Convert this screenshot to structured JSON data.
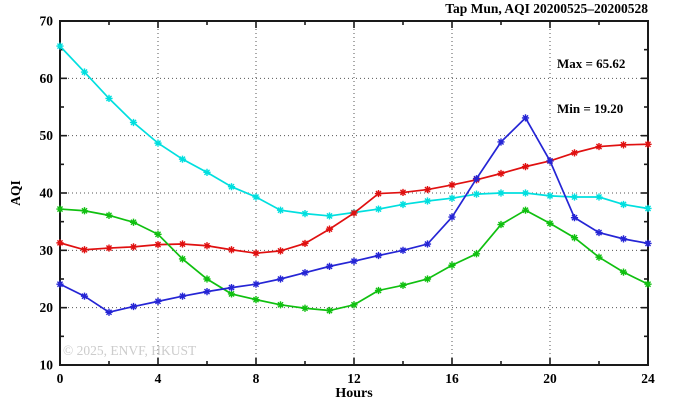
{
  "title": "Tap Mun, AQI 20200525–20200528",
  "watermark": "© 2025, ENVF, HKUST",
  "annotations": {
    "max_label": "Max = 65.62",
    "min_label": "Min = 19.20"
  },
  "chart_data": {
    "type": "line",
    "title": "Tap Mun, AQI 20200525–20200528",
    "xlabel": "Hours",
    "ylabel": "AQI",
    "xlim": [
      0,
      24
    ],
    "ylim": [
      10,
      70
    ],
    "xticks": [
      0,
      4,
      8,
      12,
      16,
      20,
      24
    ],
    "yticks": [
      10,
      20,
      30,
      40,
      50,
      60,
      70
    ],
    "minor_x_step": 2,
    "minor_y_step": 5,
    "grid": true,
    "legend": "none",
    "max_value": 65.62,
    "min_value": 19.2,
    "marker": "asterisk",
    "x": [
      0,
      1,
      2,
      3,
      4,
      5,
      6,
      7,
      8,
      9,
      10,
      11,
      12,
      13,
      14,
      15,
      16,
      17,
      18,
      19,
      20,
      21,
      22,
      23,
      24
    ],
    "series": [
      {
        "name": "cyan-line",
        "color": "#00dfdf",
        "values": [
          65.62,
          61.1,
          56.5,
          52.3,
          48.7,
          45.9,
          43.6,
          41.1,
          39.3,
          37.0,
          36.4,
          36.0,
          36.6,
          37.2,
          38.0,
          38.6,
          39.1,
          39.8,
          40.0,
          40.0,
          39.5,
          39.3,
          39.3,
          38.0,
          37.3
        ]
      },
      {
        "name": "red-line",
        "color": "#e01010",
        "values": [
          31.3,
          30.1,
          30.4,
          30.6,
          31.0,
          31.1,
          30.8,
          30.1,
          29.5,
          29.9,
          31.2,
          33.7,
          36.5,
          39.9,
          40.1,
          40.6,
          41.4,
          42.3,
          43.4,
          44.6,
          45.6,
          47.0,
          48.1,
          48.4,
          48.5
        ]
      },
      {
        "name": "green-line",
        "color": "#10c010",
        "values": [
          37.2,
          36.9,
          36.1,
          34.9,
          32.8,
          28.5,
          25.0,
          22.4,
          21.4,
          20.5,
          19.9,
          19.5,
          20.5,
          23.0,
          23.9,
          25.0,
          27.4,
          29.4,
          34.5,
          37.0,
          34.7,
          32.2,
          28.8,
          26.2,
          24.1
        ]
      },
      {
        "name": "blue-line",
        "color": "#2525d5",
        "values": [
          24.1,
          22.0,
          19.2,
          20.2,
          21.1,
          22.0,
          22.8,
          23.5,
          24.1,
          25.0,
          26.1,
          27.2,
          28.1,
          29.1,
          30.0,
          31.1,
          35.8,
          42.5,
          48.9,
          53.1,
          45.6,
          35.7,
          33.1,
          32.0,
          31.2
        ]
      }
    ]
  }
}
